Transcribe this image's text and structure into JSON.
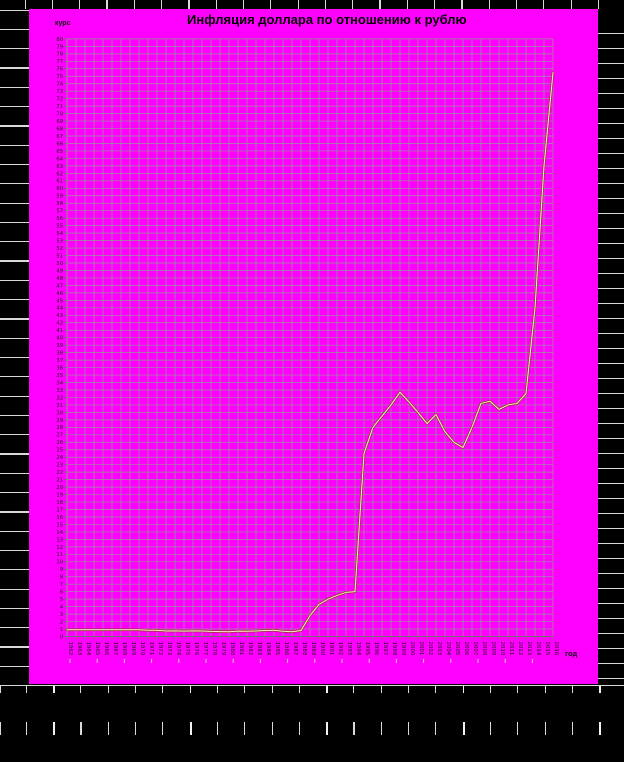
{
  "title": "Инфляция доллара по отношению к рублю",
  "y_axis_title": "курс",
  "x_axis_title": "год",
  "colors": {
    "frame": "#000000",
    "background": "#ff00ff",
    "grid": "#969696",
    "axis": "#6f6f6f",
    "text": "#1a1a1a",
    "line_outer": "#9b3832",
    "line_inner": "#ffeadd",
    "frame_tick": "#d9d9d9",
    "sub_tick": "#cdcdcd"
  },
  "chart_data": {
    "type": "line",
    "title": "Инфляция доллара по отношению к рублю",
    "xlabel": "год",
    "ylabel": "курс",
    "grid": true,
    "legend": "none",
    "ylim": [
      0,
      80
    ],
    "y_tick_step": 1,
    "x_tick_step": 1,
    "x": [
      1962,
      1963,
      1964,
      1965,
      1966,
      1967,
      1968,
      1969,
      1970,
      1971,
      1972,
      1973,
      1974,
      1975,
      1976,
      1977,
      1978,
      1979,
      1980,
      1981,
      1982,
      1983,
      1984,
      1985,
      1986,
      1987,
      1988,
      1989,
      1990,
      1991,
      1992,
      1993,
      1994,
      1995,
      1996,
      1997,
      1998,
      1999,
      2000,
      2001,
      2002,
      2003,
      2004,
      2005,
      2006,
      2007,
      2008,
      2009,
      2010,
      2011,
      2012,
      2013,
      2014,
      2015,
      2016
    ],
    "values": [
      0.9,
      0.9,
      0.9,
      0.9,
      0.9,
      0.9,
      0.9,
      0.9,
      0.9,
      0.83,
      0.83,
      0.74,
      0.76,
      0.72,
      0.76,
      0.74,
      0.68,
      0.66,
      0.64,
      0.72,
      0.71,
      0.74,
      0.81,
      0.84,
      0.7,
      0.63,
      0.8,
      2.8,
      4.3,
      5.0,
      5.5,
      5.9,
      6.0,
      24.5,
      28.0,
      29.5,
      31.0,
      32.7,
      31.4,
      30.0,
      28.5,
      29.7,
      27.4,
      26.0,
      25.3,
      28.0,
      31.2,
      31.5,
      30.4,
      31.0,
      31.2,
      32.5,
      44.0,
      63.0,
      75.5
    ]
  }
}
